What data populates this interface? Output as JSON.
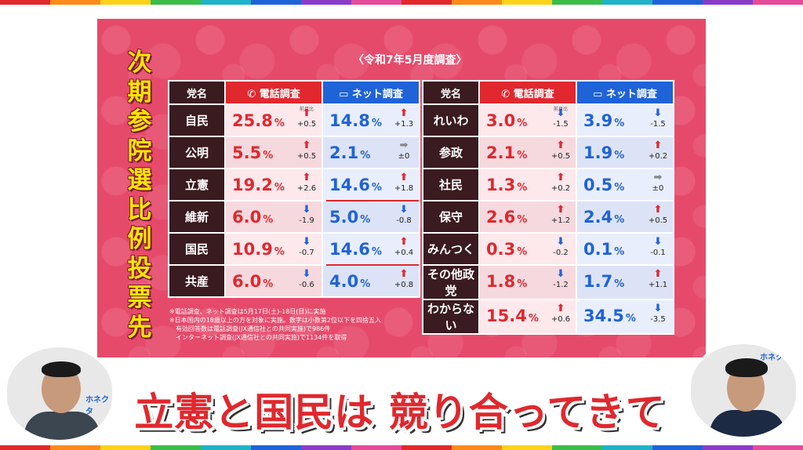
{
  "colors": {
    "panel": "#e64a6b",
    "title_yellow": "#ffe400",
    "phone_red": "#e0282e",
    "net_blue": "#1f63d8",
    "party_dark": "#3a1b1f"
  },
  "stripe_colors": [
    "#e0282e",
    "#ff8a1a",
    "#ffd21a",
    "#3bbd4a",
    "#1fb3c8",
    "#1f63d8",
    "#8a3cc8",
    "#e64a9a",
    "#e0282e",
    "#ff8a1a",
    "#ffd21a",
    "#3bbd4a",
    "#1fb3c8",
    "#1f63d8",
    "#8a3cc8",
    "#e64a9a"
  ],
  "title_chars": [
    "次",
    "期",
    "参",
    "院",
    "選",
    "比",
    "例",
    "投",
    "票",
    "先"
  ],
  "subtitle": "〈令和7年5月度調査〉",
  "headers": {
    "party": "党名",
    "phone": "電話調査",
    "net": "ネット調査"
  },
  "change_note": "前月比",
  "pct": "%",
  "left_rows": [
    {
      "name": "自民",
      "phone": "25.8",
      "phone_dir": "up",
      "phone_diff": "+0.5",
      "net": "14.8",
      "net_dir": "up",
      "net_diff": "+1.3"
    },
    {
      "name": "公明",
      "phone": "5.5",
      "phone_dir": "up",
      "phone_diff": "+0.5",
      "net": "2.1",
      "net_dir": "flat",
      "net_diff": "±0"
    },
    {
      "name": "立憲",
      "phone": "19.2",
      "phone_dir": "up",
      "phone_diff": "+2.6",
      "net": "14.6",
      "net_dir": "up",
      "net_diff": "+1.8"
    },
    {
      "name": "維新",
      "phone": "6.0",
      "phone_dir": "down",
      "phone_diff": "-1.9",
      "net": "5.0",
      "net_dir": "down",
      "net_diff": "-0.8"
    },
    {
      "name": "国民",
      "phone": "10.9",
      "phone_dir": "down",
      "phone_diff": "-0.7",
      "net": "14.6",
      "net_dir": "up",
      "net_diff": "+0.4"
    },
    {
      "name": "共産",
      "phone": "6.0",
      "phone_dir": "down",
      "phone_diff": "-0.6",
      "net": "4.0",
      "net_dir": "up",
      "net_diff": "+0.8"
    }
  ],
  "right_rows": [
    {
      "name": "れいわ",
      "phone": "3.0",
      "phone_dir": "down",
      "phone_diff": "-1.5",
      "net": "3.9",
      "net_dir": "down",
      "net_diff": "-1.5"
    },
    {
      "name": "参政",
      "phone": "2.1",
      "phone_dir": "up",
      "phone_diff": "+0.5",
      "net": "1.9",
      "net_dir": "up",
      "net_diff": "+0.2"
    },
    {
      "name": "社民",
      "phone": "1.3",
      "phone_dir": "up",
      "phone_diff": "+0.2",
      "net": "0.5",
      "net_dir": "flat",
      "net_diff": "±0"
    },
    {
      "name": "保守",
      "phone": "2.6",
      "phone_dir": "up",
      "phone_diff": "+1.2",
      "net": "2.4",
      "net_dir": "up",
      "net_diff": "+0.5"
    },
    {
      "name": "みんつく",
      "phone": "0.3",
      "phone_dir": "down",
      "phone_diff": "-0.2",
      "net": "0.1",
      "net_dir": "down",
      "net_diff": "-0.1"
    },
    {
      "name": "その他政党",
      "phone": "1.8",
      "phone_dir": "down",
      "phone_diff": "-1.2",
      "net": "1.7",
      "net_dir": "up",
      "net_diff": "+1.1"
    },
    {
      "name": "わからない",
      "phone": "15.4",
      "phone_dir": "up",
      "phone_diff": "+0.6",
      "net": "34.5",
      "net_dir": "down",
      "net_diff": "-3.5"
    }
  ],
  "footnotes": [
    "※電話調査、ネット調査は5月17日(土)-18日(日)に実施",
    "※日本国内の18歳以上の方を対象に実施。数字は小数第2位以下を四捨五入",
    "　有効回答数は電話調査(JX通信社との共同実施)で986件",
    "　インターネット調査(JX通信社との共同実施)で1134件を取得"
  ],
  "caption": "立憲と国民は 競り合ってきて",
  "cam_logos": {
    "left": "ホネクタ",
    "right": "ホネクタ"
  }
}
